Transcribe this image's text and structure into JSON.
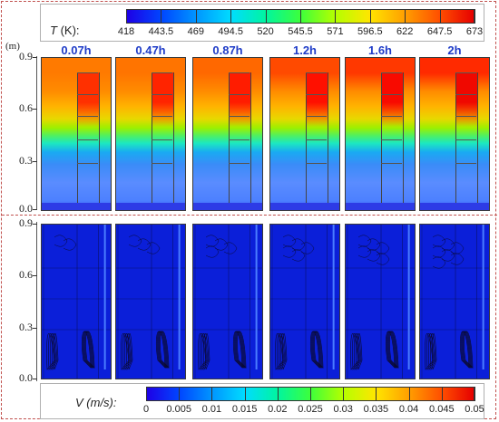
{
  "temperature_legend": {
    "label_var": "T",
    "label_unit": " (K):",
    "ticks": [
      "418",
      "443.5",
      "469",
      "494.5",
      "520",
      "545.5",
      "571",
      "596.5",
      "622",
      "647.5",
      "673"
    ],
    "colors": [
      "#1e00e6",
      "#0046ff",
      "#0096ff",
      "#00dcff",
      "#00f5a0",
      "#3cff3c",
      "#b4ff00",
      "#ffe600",
      "#ffa000",
      "#ff5000",
      "#e60000"
    ]
  },
  "velocity_legend": {
    "label": "V (m/s):",
    "ticks": [
      "0",
      "0.005",
      "0.01",
      "0.015",
      "0.02",
      "0.025",
      "0.03",
      "0.035",
      "0.04",
      "0.045",
      "0.05"
    ]
  },
  "axis": {
    "unit": "(m)",
    "ticks": [
      "0.9",
      "0.6",
      "0.3",
      "0.0"
    ],
    "ticks_lower": [
      "0.9",
      "0.6",
      "0.3",
      "0.0"
    ]
  },
  "times": [
    "0.07h",
    "0.47h",
    "0.87h",
    "1.2h",
    "1.6h",
    "2h"
  ],
  "panel_shading": {
    "hot_top_colors": [
      "#ff7a00",
      "#ff7400",
      "#ff6800",
      "#ff4a00",
      "#ff3800",
      "#ff2a00"
    ],
    "core_colors": [
      "#ff3000",
      "#ff2400",
      "#ff1c00",
      "#ff1000",
      "#f80a00",
      "#f00800"
    ]
  }
}
